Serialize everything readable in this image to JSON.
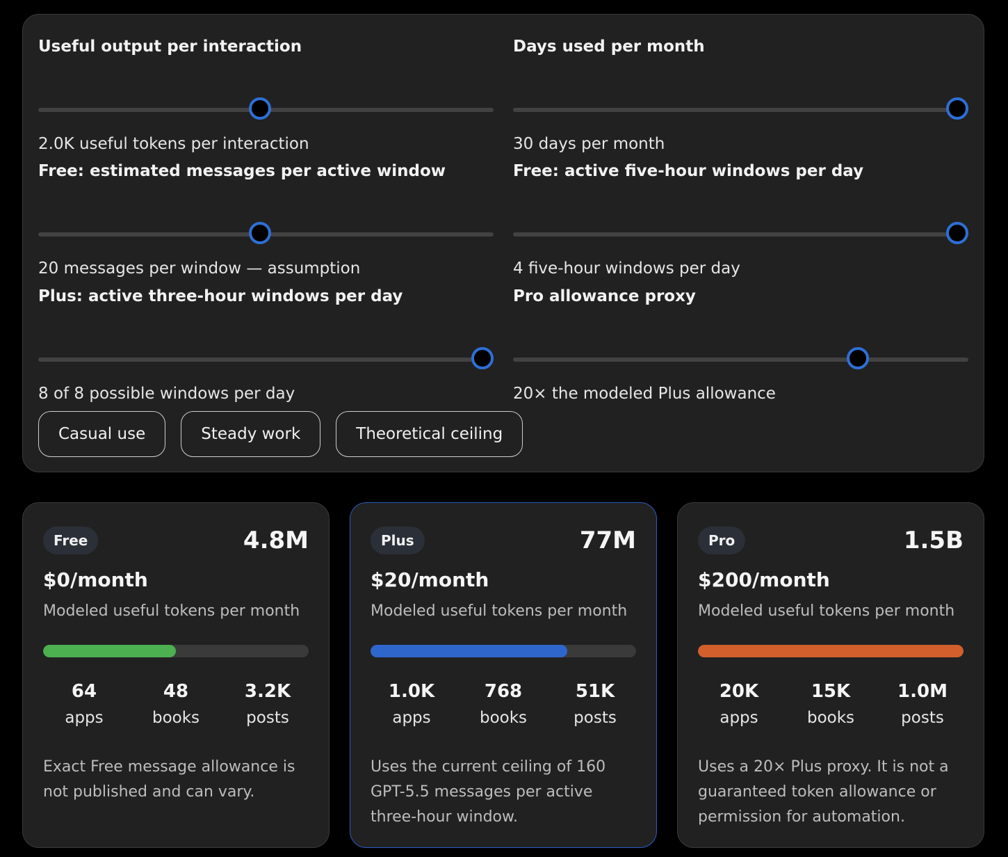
{
  "controls": [
    {
      "label": "Useful output per interaction",
      "value_text": "2.0K useful tokens per interaction",
      "level": 0.487
    },
    {
      "label": "Days used per month",
      "value_text": "30 days per month",
      "level": 1.0
    },
    {
      "label": "Free: estimated messages per active window",
      "value_text": "20 messages per window — assumption",
      "level": 0.487
    },
    {
      "label": "Free: active five-hour windows per day",
      "value_text": "4 five-hour windows per day",
      "level": 1.0
    },
    {
      "label": "Plus: active three-hour windows per day",
      "value_text": "8 of 8 possible windows per day",
      "level": 1.0
    },
    {
      "label": "Pro allowance proxy",
      "value_text": "20× the modeled Plus allowance",
      "level": 0.77
    }
  ],
  "presets": [
    "Casual use",
    "Steady work",
    "Theoretical ceiling"
  ],
  "plans": [
    {
      "name": "Free",
      "tokens": "4.8M",
      "price": "$0/month",
      "description": "Modeled useful tokens per month",
      "bar_fraction": 0.5,
      "bar_color": "#4caf50",
      "stats": [
        {
          "value": "64",
          "label": "apps"
        },
        {
          "value": "48",
          "label": "books"
        },
        {
          "value": "3.2K",
          "label": "posts"
        }
      ],
      "note": "Exact Free message allowance is not published and can vary."
    },
    {
      "name": "Plus",
      "tokens": "77M",
      "price": "$20/month",
      "description": "Modeled useful tokens per month",
      "bar_fraction": 0.74,
      "bar_color": "#2f66cc",
      "stats": [
        {
          "value": "1.0K",
          "label": "apps"
        },
        {
          "value": "768",
          "label": "books"
        },
        {
          "value": "51K",
          "label": "posts"
        }
      ],
      "note": "Uses the current ceiling of 160 GPT-5.5 messages per active three-hour window."
    },
    {
      "name": "Pro",
      "tokens": "1.5B",
      "price": "$200/month",
      "description": "Modeled useful tokens per month",
      "bar_fraction": 1.0,
      "bar_color": "#d35f2c",
      "stats": [
        {
          "value": "20K",
          "label": "apps"
        },
        {
          "value": "15K",
          "label": "books"
        },
        {
          "value": "1.0M",
          "label": "posts"
        }
      ],
      "note": "Uses a 20× Plus proxy. It is not a guaranteed token allowance or permission for automation."
    }
  ],
  "colors": {
    "accent": "#2f6fd6",
    "panel_bg": "#212121",
    "page_bg": "#000000"
  }
}
